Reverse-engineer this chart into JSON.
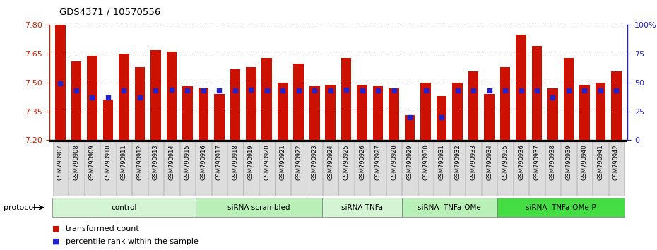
{
  "title": "GDS4371 / 10570556",
  "samples": [
    "GSM790907",
    "GSM790908",
    "GSM790909",
    "GSM790910",
    "GSM790911",
    "GSM790912",
    "GSM790913",
    "GSM790914",
    "GSM790915",
    "GSM790916",
    "GSM790917",
    "GSM790918",
    "GSM790919",
    "GSM790920",
    "GSM790921",
    "GSM790922",
    "GSM790923",
    "GSM790924",
    "GSM790925",
    "GSM790926",
    "GSM790927",
    "GSM790928",
    "GSM790929",
    "GSM790930",
    "GSM790931",
    "GSM790932",
    "GSM790933",
    "GSM790934",
    "GSM790935",
    "GSM790936",
    "GSM790937",
    "GSM790938",
    "GSM790939",
    "GSM790940",
    "GSM790941",
    "GSM790942"
  ],
  "transformed_count": [
    7.8,
    7.61,
    7.64,
    7.41,
    7.65,
    7.58,
    7.67,
    7.66,
    7.48,
    7.47,
    7.44,
    7.57,
    7.58,
    7.63,
    7.5,
    7.6,
    7.48,
    7.49,
    7.63,
    7.49,
    7.48,
    7.47,
    7.33,
    7.5,
    7.43,
    7.5,
    7.56,
    7.44,
    7.58,
    7.75,
    7.69,
    7.47,
    7.63,
    7.49,
    7.5,
    7.56
  ],
  "percentile_rank": [
    49,
    43,
    37,
    37,
    43,
    37,
    43,
    44,
    43,
    43,
    43,
    43,
    44,
    43,
    43,
    43,
    43,
    43,
    44,
    43,
    43,
    43,
    20,
    43,
    20,
    43,
    43,
    43,
    43,
    43,
    43,
    37,
    43,
    43,
    43,
    43
  ],
  "groups": [
    {
      "label": "control",
      "start": 0,
      "end": 9,
      "color": "#d4f5d4"
    },
    {
      "label": "siRNA scrambled",
      "start": 9,
      "end": 17,
      "color": "#b8f0b8"
    },
    {
      "label": "siRNA TNFa",
      "start": 17,
      "end": 22,
      "color": "#d4f5d4"
    },
    {
      "label": "siRNA  TNFa-OMe",
      "start": 22,
      "end": 28,
      "color": "#b8f0b8"
    },
    {
      "label": "siRNA  TNFa-OMe-P",
      "start": 28,
      "end": 36,
      "color": "#44dd44"
    }
  ],
  "ymin": 7.2,
  "ymax": 7.8,
  "bar_color": "#cc1100",
  "dot_color": "#2222cc",
  "axis_color_left": "#cc2200",
  "axis_color_right": "#2222cc",
  "protocol_label": "protocol",
  "legend_items": [
    {
      "color": "#cc1100",
      "label": "transformed count"
    },
    {
      "color": "#2222cc",
      "label": "percentile rank within the sample"
    }
  ],
  "yticks": [
    7.2,
    7.35,
    7.5,
    7.65,
    7.8
  ],
  "right_yticks": [
    0,
    25,
    50,
    75,
    100
  ],
  "right_yticklabels": [
    "0",
    "25",
    "50",
    "75",
    "100%"
  ],
  "group_colors": [
    "#d4f5d4",
    "#b8f0b8",
    "#d4f5d4",
    "#b8f0b8",
    "#44dd44"
  ]
}
